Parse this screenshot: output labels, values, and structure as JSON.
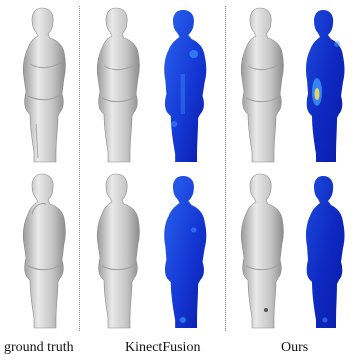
{
  "figure": {
    "captions": {
      "ground_truth": "ground truth",
      "kinectfusion": "KinectFusion",
      "ours": "Ours"
    },
    "rows": [
      {
        "view": "side-top",
        "panels": [
          "gray-mesh",
          "gray-mesh",
          "blue-heatmap",
          "gray-mesh",
          "blue-heatmap"
        ]
      },
      {
        "view": "side-bottom",
        "panels": [
          "gray-mesh",
          "gray-mesh",
          "blue-heatmap",
          "gray-mesh",
          "blue-heatmap"
        ]
      }
    ],
    "colors": {
      "mesh_light": "#e6e6e6",
      "mesh_mid": "#b8b8b8",
      "mesh_dark": "#7d7d7d",
      "heat_dark": "#0a1aa8",
      "heat_mid": "#1e4de0",
      "heat_light": "#3fa0ff",
      "heat_hot": "#ffe34a",
      "divider": "#8a8a8a"
    }
  }
}
